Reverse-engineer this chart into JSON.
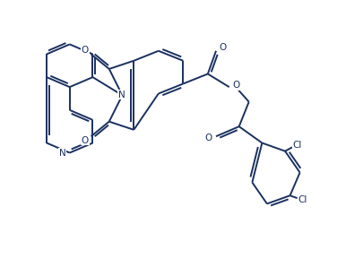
{
  "background_color": "#ffffff",
  "line_color": "#1a3060",
  "line_width": 1.4,
  "figsize": [
    4.05,
    3.08
  ],
  "dpi": 100,
  "xlim": [
    0,
    11
  ],
  "ylim": [
    0,
    8
  ]
}
